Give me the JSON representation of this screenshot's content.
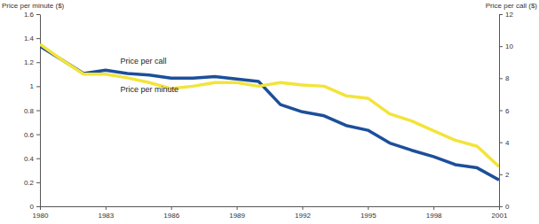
{
  "chart_data": {
    "type": "line",
    "y_label": "Price per minute ($)",
    "y2_label": "Price per call ($)",
    "x": [
      1980,
      1981,
      1982,
      1983,
      1984,
      1985,
      1986,
      1987,
      1988,
      1989,
      1990,
      1991,
      1992,
      1993,
      1994,
      1995,
      1996,
      1997,
      1998,
      1999,
      2000,
      2001
    ],
    "xlim": [
      1980,
      2001
    ],
    "xticks": [
      1980,
      1983,
      1986,
      1989,
      1992,
      1995,
      1998,
      2001
    ],
    "ylim": [
      0,
      1.6
    ],
    "yticks": [
      0,
      0.2,
      0.4,
      0.6,
      0.8,
      1,
      1.2,
      1.4,
      1.6
    ],
    "y2lim": [
      0,
      12
    ],
    "y2ticks": [
      0,
      2,
      4,
      6,
      8,
      10,
      12
    ],
    "grid": false,
    "series": [
      {
        "name": "Price per call",
        "color": "#1c4f9a",
        "axis": "y2",
        "values": [
          10.0,
          9.15,
          8.3,
          8.5,
          8.3,
          8.2,
          8.0,
          8.0,
          8.1,
          7.95,
          7.8,
          6.35,
          5.9,
          5.65,
          5.05,
          4.75,
          3.95,
          3.5,
          3.1,
          2.6,
          2.4,
          1.65
        ]
      },
      {
        "name": "Price per minute",
        "color": "#f2e43a",
        "values": [
          1.35,
          1.22,
          1.1,
          1.1,
          1.07,
          1.03,
          0.98,
          1.0,
          1.03,
          1.03,
          1.0,
          1.03,
          1.01,
          1.0,
          0.92,
          0.9,
          0.77,
          0.71,
          0.63,
          0.55,
          0.5,
          0.33
        ]
      }
    ]
  }
}
